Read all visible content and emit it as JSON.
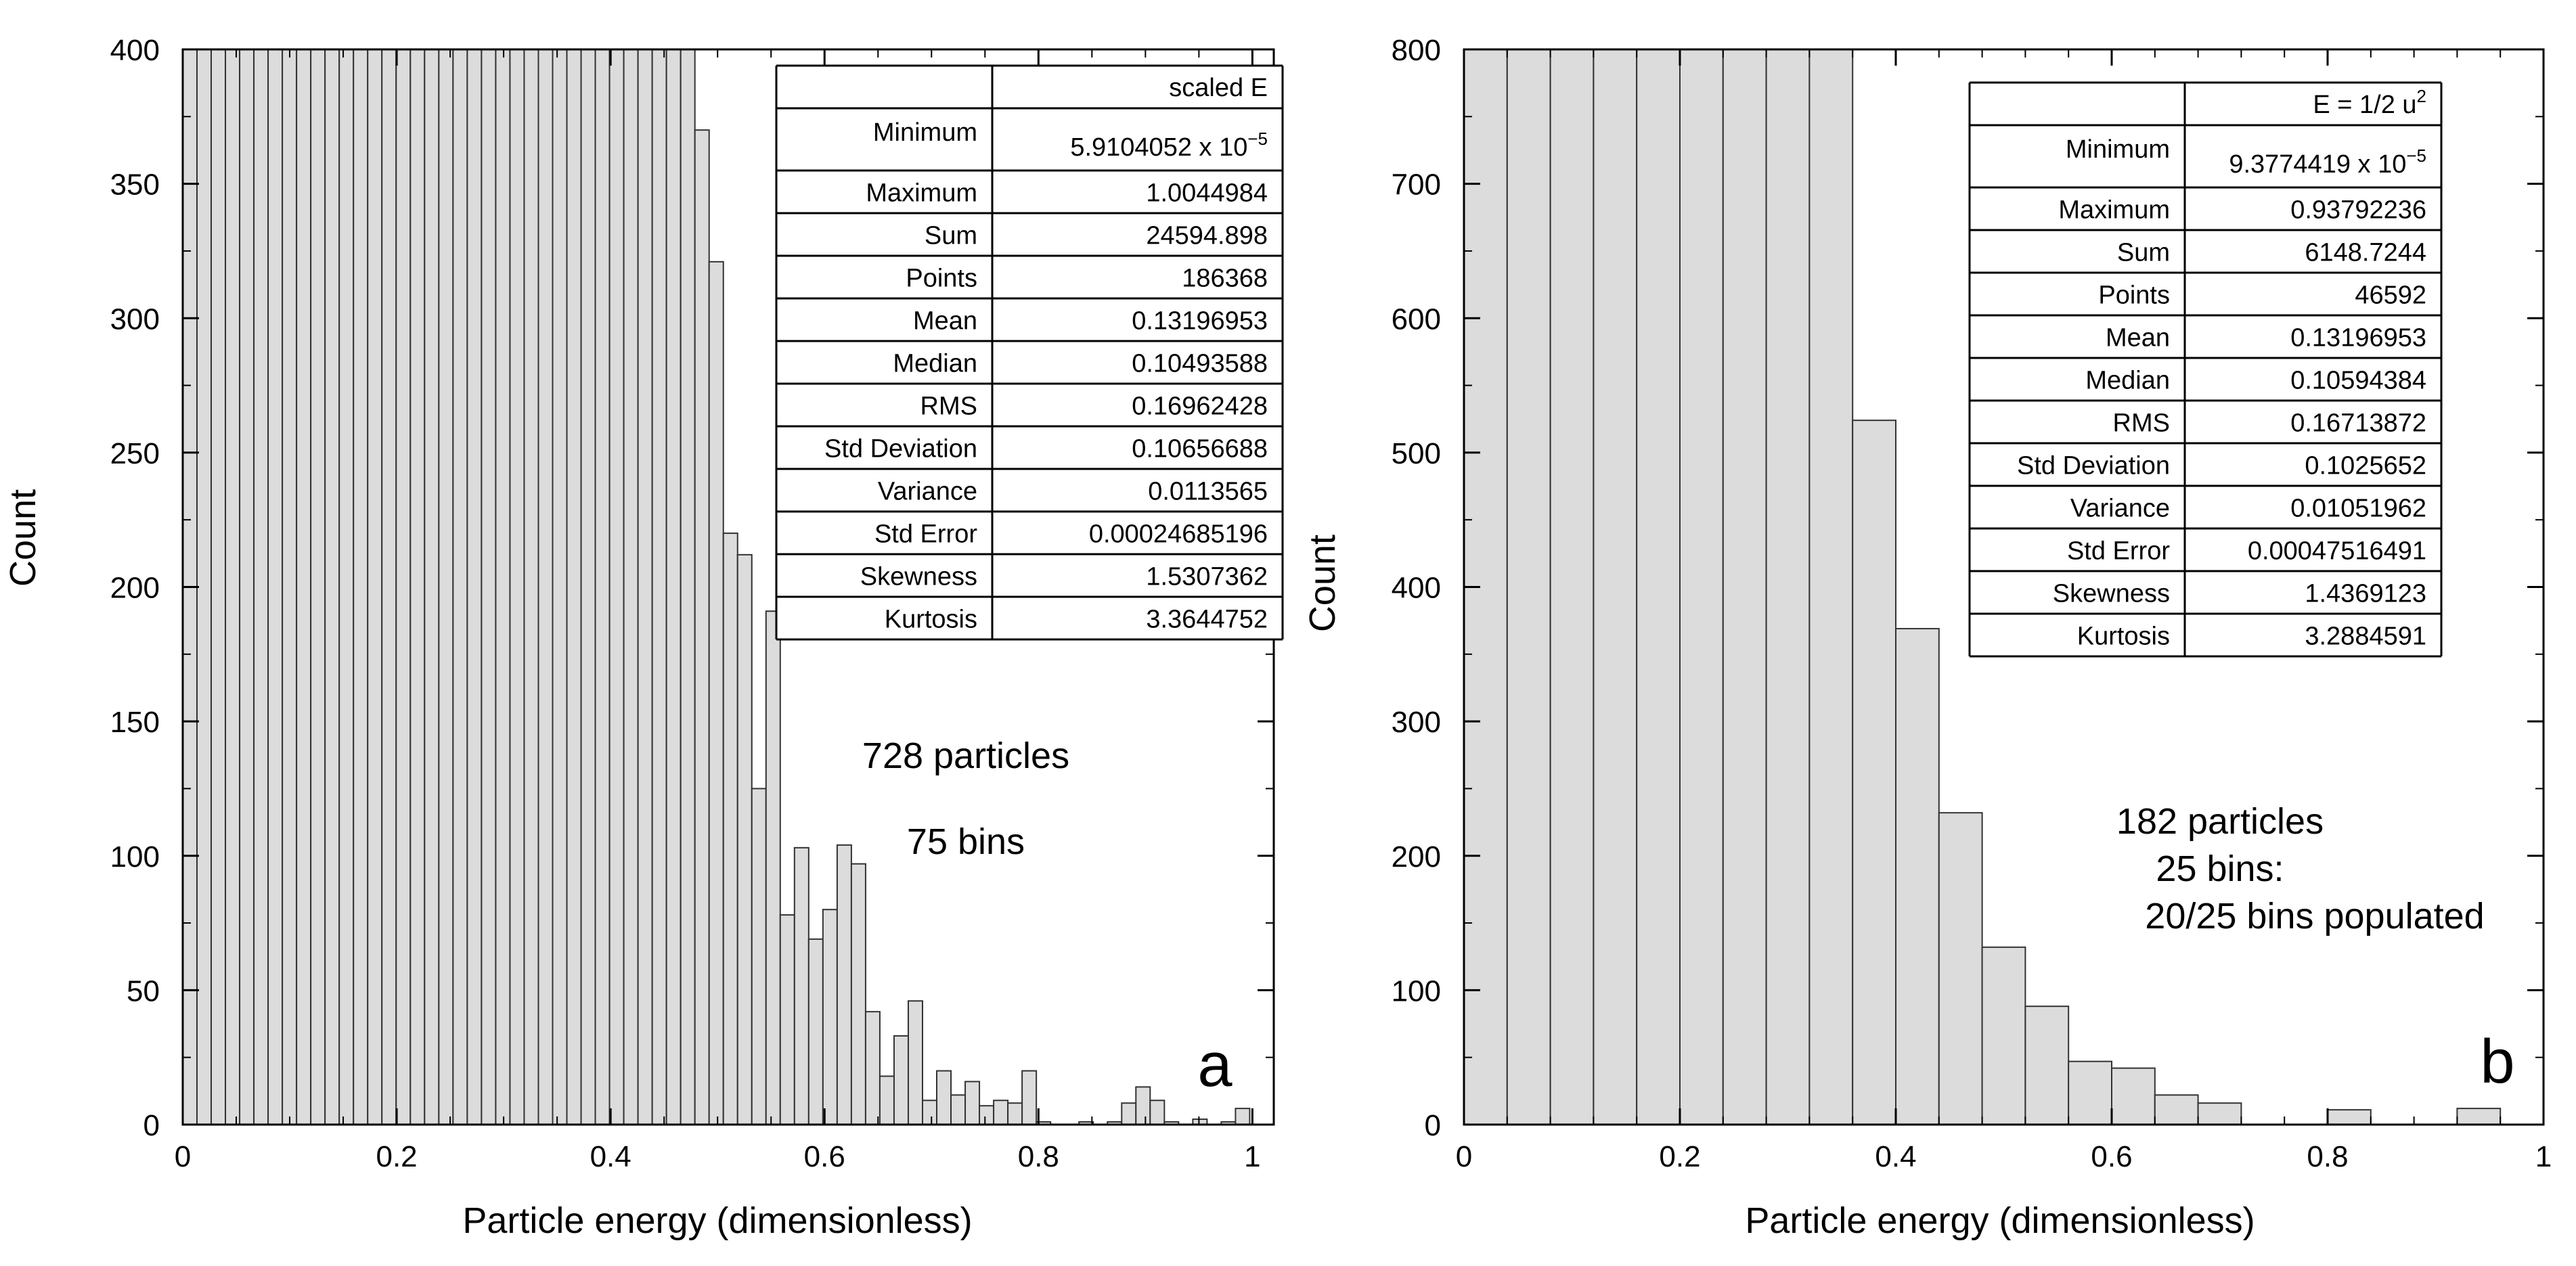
{
  "chart_data": [
    {
      "type": "bar",
      "panel_letter": "a",
      "xlabel": "Particle energy (dimensionless)",
      "ylabel": "Count",
      "xlim": [
        0,
        1.02
      ],
      "ylim": [
        0,
        400
      ],
      "x_ticks": [
        "0",
        "0.2",
        "0.4",
        "0.6",
        "0.8",
        "1"
      ],
      "y_ticks": [
        "0",
        "50",
        "100",
        "150",
        "200",
        "250",
        "300",
        "350",
        "400"
      ],
      "bin_start": 0,
      "bin_width": 0.0133,
      "values": [
        400,
        400,
        400,
        400,
        400,
        400,
        400,
        400,
        400,
        400,
        400,
        400,
        400,
        400,
        400,
        400,
        400,
        400,
        400,
        400,
        400,
        400,
        400,
        400,
        400,
        400,
        400,
        400,
        400,
        400,
        400,
        400,
        400,
        400,
        400,
        400,
        370,
        321,
        220,
        212,
        125,
        191,
        78,
        103,
        69,
        80,
        104,
        97,
        42,
        18,
        33,
        46,
        9,
        20,
        11,
        16,
        7,
        9,
        8,
        20,
        1,
        0,
        0,
        1,
        0,
        1,
        8,
        14,
        9,
        1,
        0,
        2,
        0,
        1,
        6
      ],
      "annotations": [
        "728 particles",
        "75 bins"
      ],
      "stats_table": {
        "header": "scaled E",
        "rows": [
          {
            "label": "Minimum",
            "value": "5.9104052 x 10",
            "exp": "−5"
          },
          {
            "label": "Maximum",
            "value": "1.0044984"
          },
          {
            "label": "Sum",
            "value": "24594.898"
          },
          {
            "label": "Points",
            "value": "186368"
          },
          {
            "label": "Mean",
            "value": "0.13196953"
          },
          {
            "label": "Median",
            "value": "0.10493588"
          },
          {
            "label": "RMS",
            "value": "0.16962428"
          },
          {
            "label": "Std Deviation",
            "value": "0.10656688"
          },
          {
            "label": "Variance",
            "value": "0.0113565"
          },
          {
            "label": "Std Error",
            "value": "0.00024685196"
          },
          {
            "label": "Skewness",
            "value": "1.5307362"
          },
          {
            "label": "Kurtosis",
            "value": "3.3644752"
          }
        ]
      }
    },
    {
      "type": "bar",
      "panel_letter": "b",
      "xlabel": "Particle energy (dimensionless)",
      "ylabel": "Count",
      "xlim": [
        0,
        1.0
      ],
      "ylim": [
        0,
        800
      ],
      "x_ticks": [
        "0",
        "0.2",
        "0.4",
        "0.6",
        "0.8",
        "1"
      ],
      "y_ticks": [
        "0",
        "100",
        "200",
        "300",
        "400",
        "500",
        "600",
        "700",
        "800"
      ],
      "bin_start": 0,
      "bin_width": 0.04,
      "values": [
        800,
        800,
        800,
        800,
        800,
        800,
        800,
        800,
        800,
        524,
        369,
        232,
        132,
        88,
        47,
        42,
        22,
        16,
        0,
        0,
        11,
        0,
        0,
        12,
        0
      ],
      "annotations": [
        "182 particles",
        "25 bins:",
        "20/25 bins populated"
      ],
      "stats_table": {
        "header": "E = 1/2 u",
        "header_exp": "2",
        "rows": [
          {
            "label": "Minimum",
            "value": "9.3774419 x 10",
            "exp": "−5"
          },
          {
            "label": "Maximum",
            "value": "0.93792236"
          },
          {
            "label": "Sum",
            "value": "6148.7244"
          },
          {
            "label": "Points",
            "value": "46592"
          },
          {
            "label": "Mean",
            "value": "0.13196953"
          },
          {
            "label": "Median",
            "value": "0.10594384"
          },
          {
            "label": "RMS",
            "value": "0.16713872"
          },
          {
            "label": "Std Deviation",
            "value": "0.1025652"
          },
          {
            "label": "Variance",
            "value": "0.01051962"
          },
          {
            "label": "Std Error",
            "value": "0.00047516491"
          },
          {
            "label": "Skewness",
            "value": "1.4369123"
          },
          {
            "label": "Kurtosis",
            "value": "3.2884591"
          }
        ]
      }
    }
  ]
}
